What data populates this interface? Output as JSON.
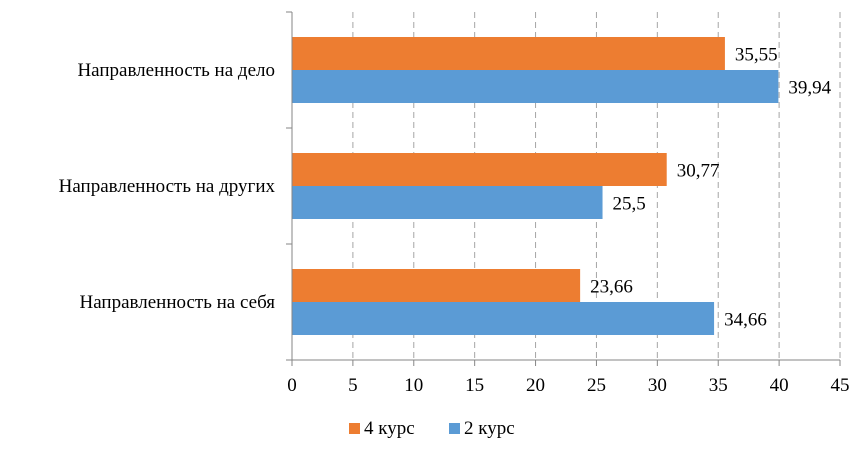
{
  "chart_data": {
    "type": "bar",
    "orientation": "horizontal",
    "categories": [
      "Направленность на дело",
      "Направленность на других",
      "Направленность на себя"
    ],
    "series": [
      {
        "name": "4 курс",
        "color": "#ED7D31",
        "values": [
          35.55,
          30.77,
          23.66
        ],
        "labels": [
          "35,55",
          "30,77",
          "23,66"
        ]
      },
      {
        "name": "2 курс",
        "color": "#5B9BD5",
        "values": [
          39.94,
          25.5,
          34.66
        ],
        "labels": [
          "39,94",
          "25,5",
          "34,66"
        ]
      }
    ],
    "xlim": [
      0,
      45
    ],
    "x_ticks": [
      "0",
      "5",
      "10",
      "15",
      "20",
      "25",
      "30",
      "35",
      "40",
      "45"
    ],
    "grid": "vertical dashed",
    "legend": "bottom-center",
    "title": "",
    "xlabel": "",
    "ylabel": ""
  }
}
